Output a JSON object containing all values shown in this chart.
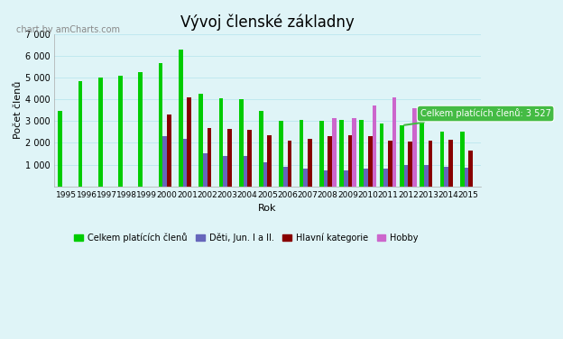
{
  "title": "Vývoj členské základny",
  "xlabel": "Rok",
  "ylabel": "Počet členů",
  "watermark": "chart by amCharts.com",
  "years": [
    1995,
    1996,
    1997,
    1998,
    1999,
    2000,
    2001,
    2002,
    2003,
    2004,
    2005,
    2006,
    2007,
    2008,
    2009,
    2010,
    2011,
    2012,
    2013,
    2014,
    2015
  ],
  "celkem": [
    3450,
    4850,
    5000,
    5100,
    5250,
    5650,
    6300,
    4250,
    4050,
    4000,
    3450,
    3000,
    3050,
    3000,
    3050,
    3050,
    2900,
    2800,
    3100,
    2500,
    2500
  ],
  "deti": [
    0,
    0,
    0,
    0,
    0,
    2300,
    2200,
    1500,
    1400,
    1400,
    1100,
    900,
    800,
    750,
    750,
    800,
    800,
    1000,
    1000,
    900,
    850
  ],
  "hlavni": [
    0,
    0,
    0,
    0,
    0,
    3300,
    4100,
    2700,
    2650,
    2600,
    2350,
    2100,
    2200,
    2300,
    2350,
    2300,
    2100,
    2050,
    2100,
    2150,
    1650
  ],
  "hobby": [
    0,
    0,
    0,
    0,
    0,
    0,
    0,
    0,
    0,
    0,
    0,
    0,
    0,
    3150,
    3150,
    3700,
    4100,
    3600,
    0,
    0,
    0
  ],
  "colors": {
    "celkem": "#00cc00",
    "deti": "#6666bb",
    "hlavni": "#880000",
    "hobby": "#cc66cc"
  },
  "ylim": [
    0,
    7000
  ],
  "yticks": [
    0,
    1000,
    2000,
    3000,
    4000,
    5000,
    6000,
    7000
  ],
  "ytick_labels": [
    "",
    "1 000",
    "2 000",
    "3 000",
    "4 000",
    "5 000",
    "6 000",
    "7 000"
  ],
  "legend_labels": [
    "Celkem platících členů",
    "Děti, Jun. I a II.",
    "Hlavní kategorie",
    "Hobby"
  ],
  "bg_color": "#dff4f7",
  "grid_color": "#c0e8ef",
  "tooltip_text": "Celkem platících členů: 3 527",
  "tooltip_bg": "#44bb44",
  "watermark_fontsize": 7,
  "title_fontsize": 12
}
